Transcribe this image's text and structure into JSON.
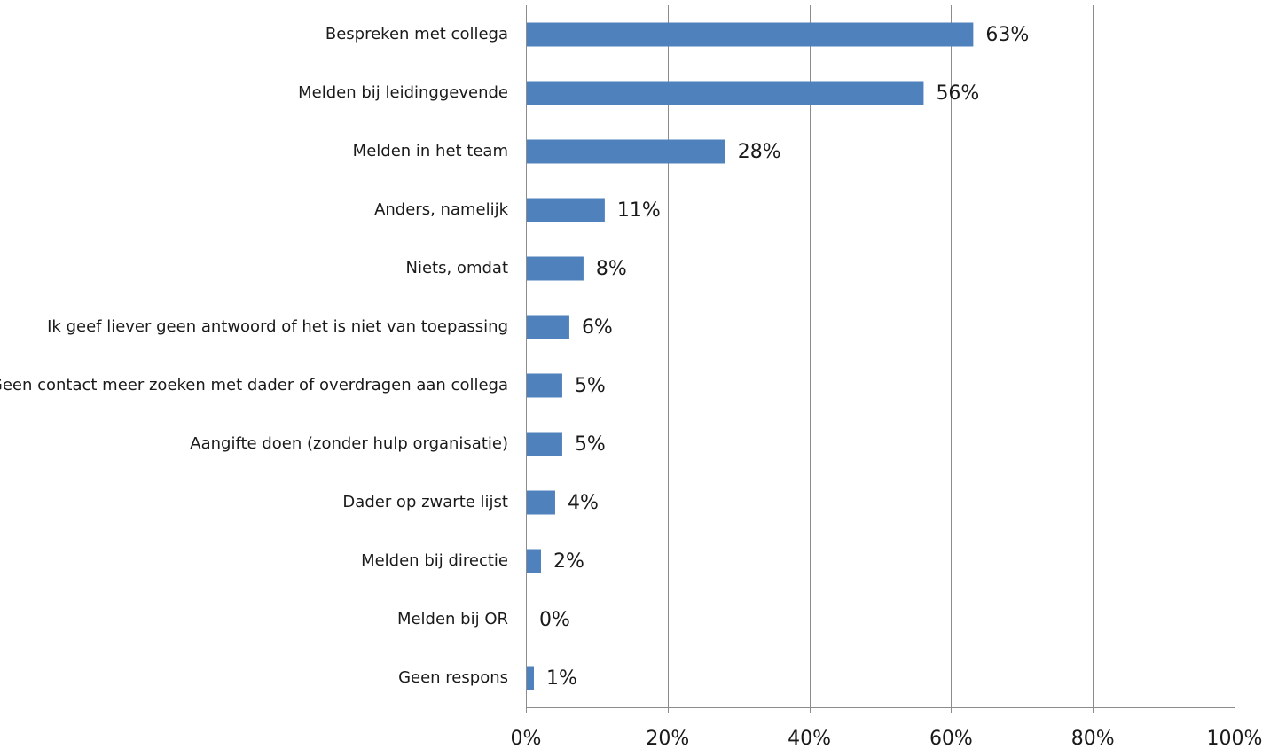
{
  "chart_data": {
    "type": "bar",
    "orientation": "horizontal",
    "title": "",
    "xlabel": "",
    "ylabel": "",
    "categories": [
      "Bespreken met collega",
      "Melden bij leidinggevende",
      "Melden in het team",
      "Anders, namelijk",
      "Niets, omdat",
      "Ik geef liever geen antwoord of het is niet van toepassing",
      "Geen contact meer zoeken met dader of overdragen aan collega",
      "Aangifte doen (zonder hulp organisatie)",
      "Dader op zwarte lijst",
      "Melden bij directie",
      "Melden bij OR",
      "Geen respons"
    ],
    "values": [
      63,
      56,
      28,
      11,
      8,
      6,
      5,
      5,
      4,
      2,
      0,
      1
    ],
    "value_labels": [
      "63%",
      "56%",
      "28%",
      "11%",
      "8%",
      "6%",
      "5%",
      "5%",
      "4%",
      "2%",
      "0%",
      "1%"
    ],
    "xlim": [
      0,
      100
    ],
    "ticks": [
      0,
      20,
      40,
      60,
      80,
      100
    ],
    "tick_labels": [
      "0%",
      "20%",
      "40%",
      "60%",
      "80%",
      "100%"
    ],
    "grid": true,
    "legend": "none",
    "bar_color": "#4f81bd"
  }
}
